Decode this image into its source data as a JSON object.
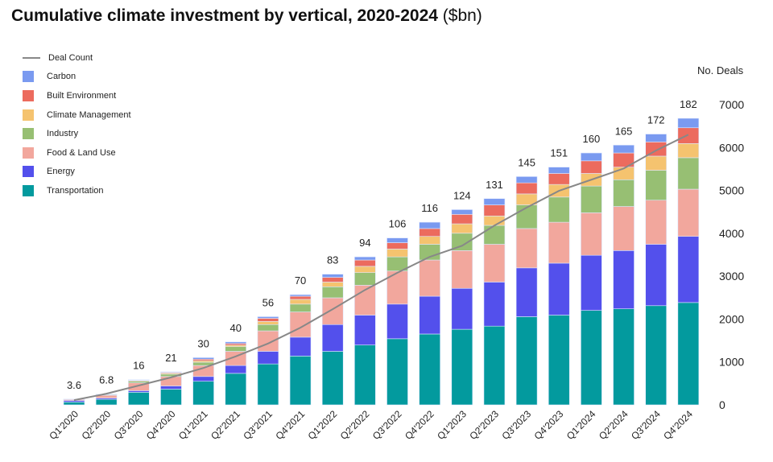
{
  "title": {
    "bold": "Cumulative climate investment by vertical, 2020-2024",
    "unit": "($bn)"
  },
  "chart_data": {
    "type": "bar",
    "stacked": true,
    "title": "Cumulative climate investment by vertical, 2020-2024 ($bn)",
    "y2label": "No. Deals",
    "y2lim": [
      0,
      7000
    ],
    "y2ticks": [
      "0",
      "1000",
      "2000",
      "3000",
      "4000",
      "5000",
      "6000",
      "7000"
    ],
    "grid": false,
    "legend_position": "top-left",
    "categories": [
      "Q1'2020",
      "Q2'2020",
      "Q3'2020",
      "Q4'2020",
      "Q1'2021",
      "Q2'2021",
      "Q3'2021",
      "Q4'2021",
      "Q1'2022",
      "Q2'2022",
      "Q3'2022",
      "Q4'2022",
      "Q1'2023",
      "Q2'2023",
      "Q3'2023",
      "Q4'2023",
      "Q1'2024",
      "Q2'2024",
      "Q3'2024",
      "Q4'2024"
    ],
    "totals": [
      "3.6",
      "6.8",
      "16",
      "21",
      "30",
      "40",
      "56",
      "70",
      "83",
      "94",
      "106",
      "116",
      "124",
      "131",
      "145",
      "151",
      "160",
      "165",
      "172",
      "182"
    ],
    "series": [
      {
        "name": "Transportation",
        "color": "#039A9E",
        "values": [
          1.8,
          3.5,
          8,
          10,
          15,
          20,
          26,
          31,
          34,
          38,
          42,
          45,
          48,
          50,
          56,
          57,
          60,
          61,
          63,
          65
        ]
      },
      {
        "name": "Energy",
        "color": "#5350EC",
        "values": [
          0.9,
          0.8,
          1,
          2,
          3,
          5,
          8,
          12,
          17,
          19,
          22,
          24,
          26,
          28,
          31,
          33,
          35,
          37,
          39,
          42
        ]
      },
      {
        "name": "Food & Land Use",
        "color": "#F2A79D",
        "values": [
          0.7,
          1.8,
          5,
          6,
          7,
          9,
          13,
          16,
          17,
          19,
          21,
          23,
          24,
          24,
          25,
          26,
          27,
          28,
          28,
          30
        ]
      },
      {
        "name": "Industry",
        "color": "#97BF73",
        "values": [
          0.1,
          0.4,
          1,
          1.5,
          2,
          3,
          4,
          5,
          7,
          8,
          9,
          10,
          11,
          12,
          15,
          16,
          17,
          17,
          19,
          20
        ]
      },
      {
        "name": "Climate Management",
        "color": "#F5C36F",
        "values": [
          0.05,
          0.1,
          0.5,
          0.7,
          1,
          1,
          2,
          3,
          3,
          4,
          5,
          5,
          6,
          6,
          7,
          8,
          8,
          8,
          9,
          9
        ]
      },
      {
        "name": "Built Environment",
        "color": "#EC6B5E",
        "values": [
          0.03,
          0.1,
          0.3,
          0.5,
          1,
          1,
          2,
          2,
          3,
          4,
          4,
          5,
          6,
          7,
          7,
          7,
          8,
          9,
          9,
          10
        ]
      },
      {
        "name": "Carbon",
        "color": "#7A9AF0",
        "values": [
          0.02,
          0.1,
          0.2,
          0.3,
          1,
          1,
          1,
          1,
          2,
          2,
          3,
          4,
          3,
          4,
          4,
          4,
          5,
          5,
          5,
          6
        ]
      }
    ],
    "line": {
      "name": "Deal Count",
      "color": "#888888",
      "axis": "right",
      "values": [
        110,
        260,
        450,
        640,
        860,
        1130,
        1430,
        1800,
        2230,
        2680,
        3080,
        3450,
        3710,
        4180,
        4600,
        4990,
        5250,
        5510,
        5930,
        6300
      ]
    }
  },
  "legend": [
    "Deal Count",
    "Carbon",
    "Built Environment",
    "Climate Management",
    "Industry",
    "Food & Land Use",
    "Energy",
    "Transportation"
  ]
}
